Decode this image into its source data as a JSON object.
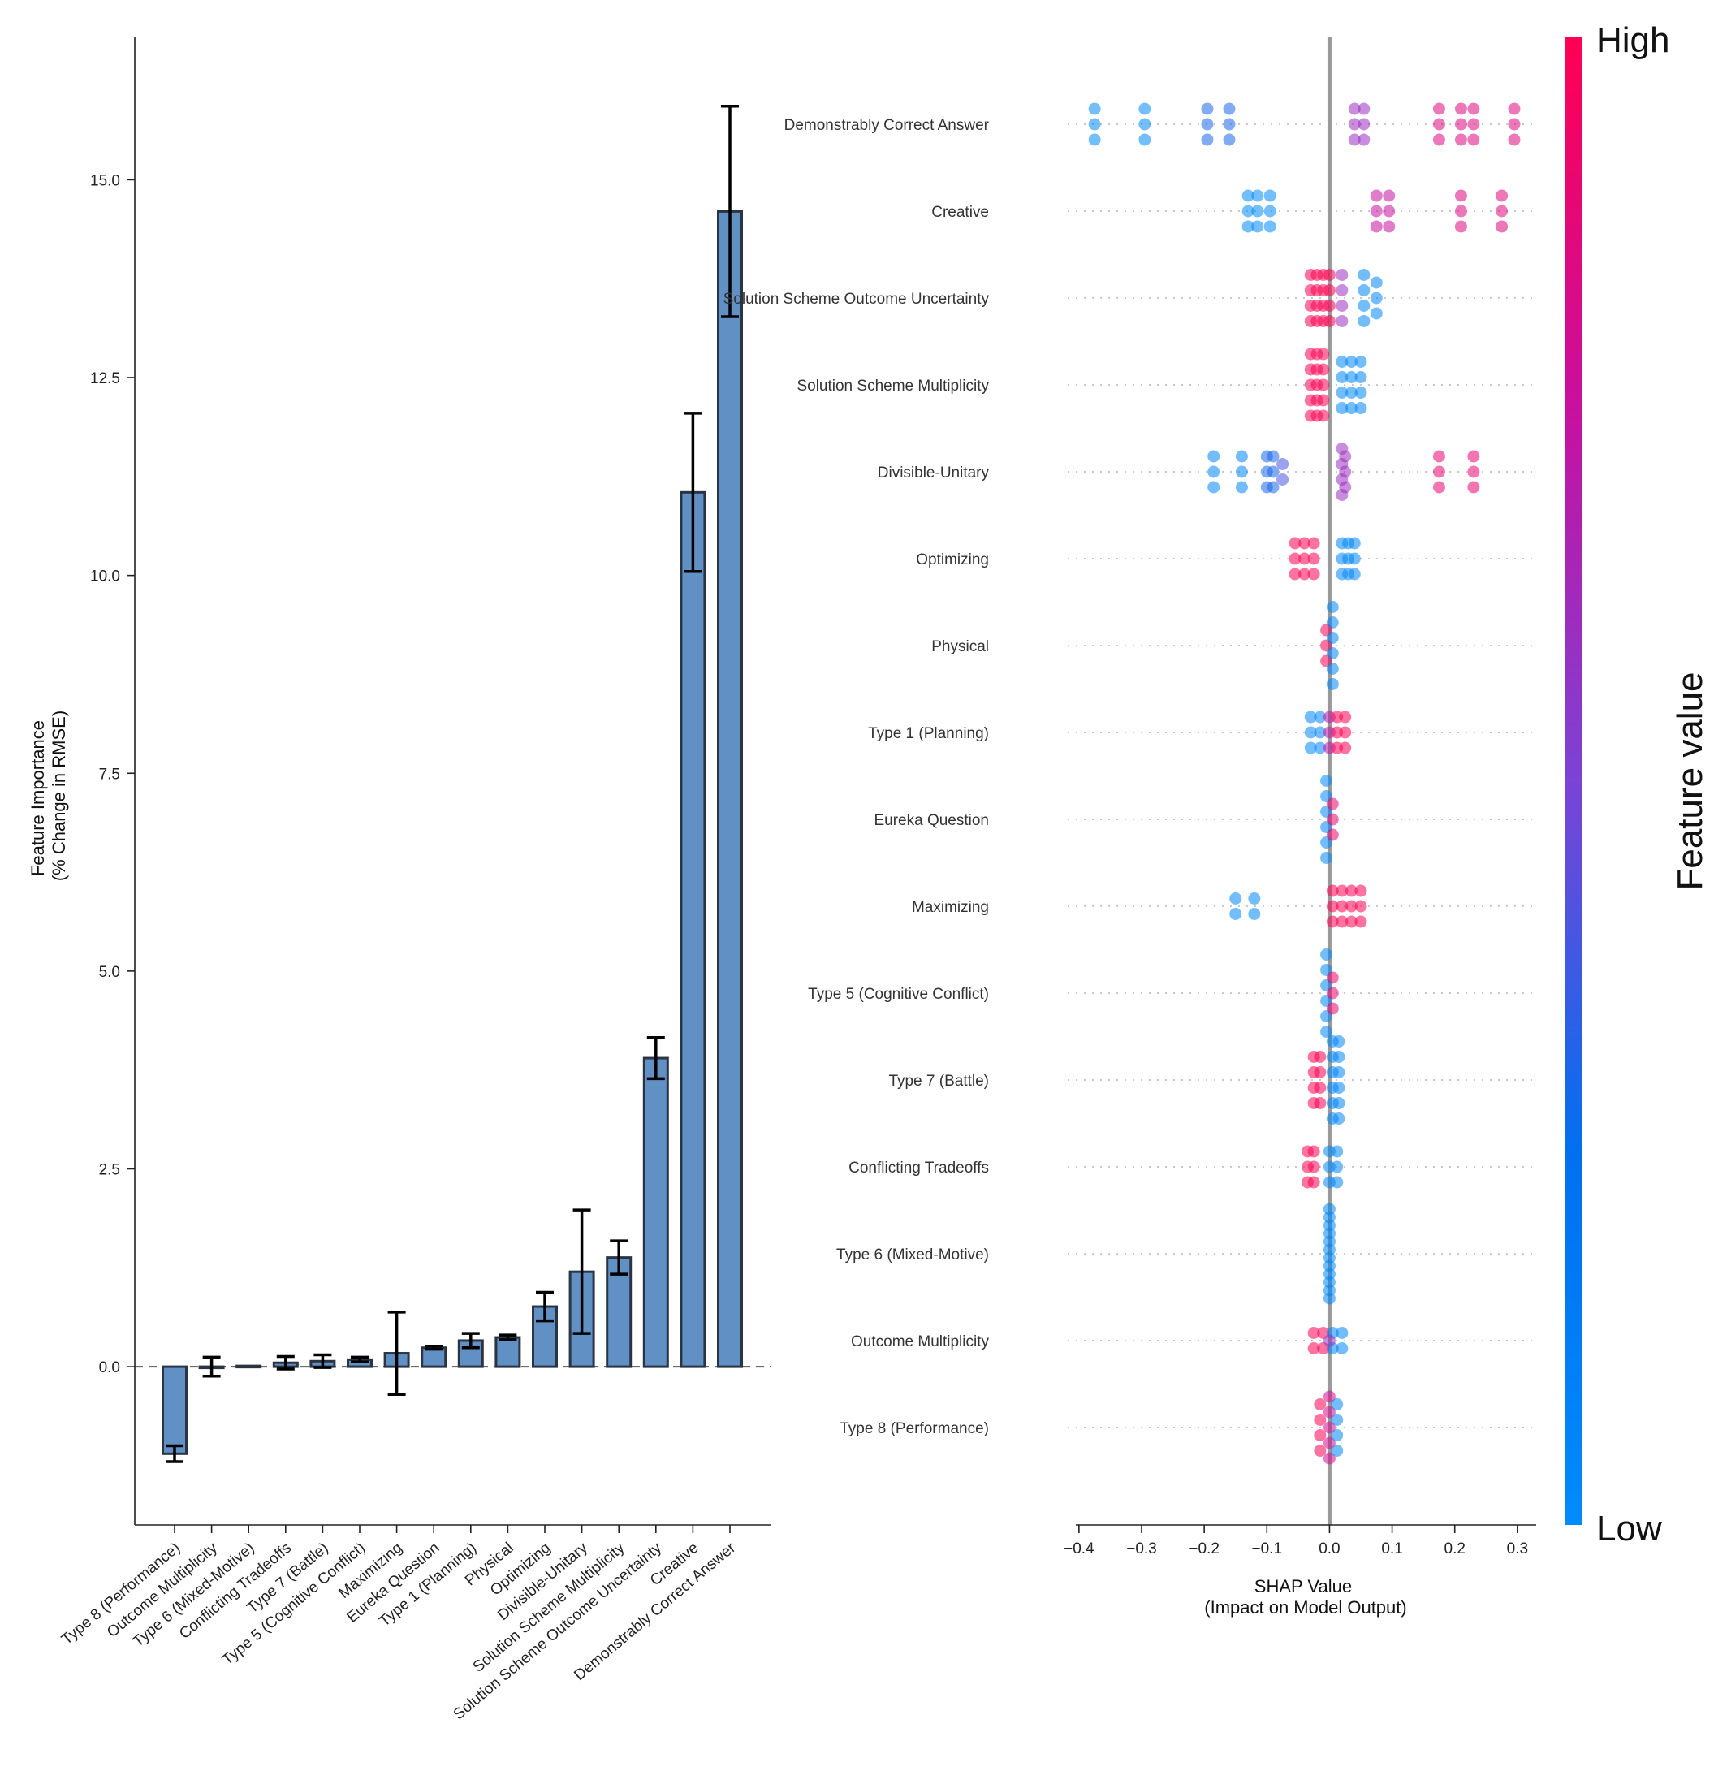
{
  "chart_data": [
    {
      "type": "bar",
      "ylabel": "Feature Importance\n(% Change in RMSE)",
      "ylim": [
        -2,
        16.8
      ],
      "yticks": [
        "0.0",
        "2.5",
        "5.0",
        "7.5",
        "10.0",
        "12.5",
        "15.0"
      ],
      "ytick_values": [
        0,
        2.5,
        5.0,
        7.5,
        10.0,
        12.5,
        15.0
      ],
      "reference_line": 0,
      "bar_color": "#6090c4",
      "categories": [
        "Type 8 (Performance)",
        "Outcome Multiplicity",
        "Type 6 (Mixed-Motive)",
        "Conflicting Tradeoffs",
        "Type 7 (Battle)",
        "Type 5 (Cognitive Conflict)",
        "Maximizing",
        "Eureka Question",
        "Type 1 (Planning)",
        "Physical",
        "Optimizing",
        "Divisible-Unitary",
        "Solution Scheme Multiplicity",
        "Solution Scheme Outcome Uncertainty",
        "Creative",
        "Demonstrably Correct Answer"
      ],
      "values": [
        -1.1,
        0.0,
        0.01,
        0.05,
        0.07,
        0.09,
        0.17,
        0.24,
        0.33,
        0.37,
        0.76,
        1.2,
        1.38,
        3.9,
        11.05,
        14.6
      ],
      "error": [
        0.1,
        0.12,
        0.0,
        0.08,
        0.08,
        0.03,
        0.52,
        0.02,
        0.09,
        0.03,
        0.18,
        0.78,
        0.21,
        0.26,
        1.0,
        1.33
      ]
    },
    {
      "type": "scatter",
      "subtype": "shap-beeswarm",
      "xlabel": "SHAP Value\n(Impact on Model Output)",
      "xlim": [
        -0.405,
        0.33
      ],
      "xticks": [
        "−0.4",
        "−0.3",
        "−0.2",
        "−0.1",
        "0.0",
        "0.1",
        "0.2",
        "0.3"
      ],
      "xtick_values": [
        -0.4,
        -0.3,
        -0.2,
        -0.1,
        0.0,
        0.1,
        0.2,
        0.3
      ],
      "reference_line": 0,
      "colorbar": {
        "label": "Feature value",
        "high": "High",
        "low": "Low",
        "low_color": "#008bfb",
        "high_color": "#ff0052"
      },
      "features": [
        {
          "name": "Demonstrably Correct Answer",
          "groups": [
            [
              -0.375,
              0,
              3
            ],
            [
              -0.295,
              0,
              3
            ],
            [
              -0.195,
              0.3,
              3
            ],
            [
              -0.16,
              0.3,
              3
            ],
            [
              0.04,
              0.6,
              3
            ],
            [
              0.055,
              0.6,
              3
            ],
            [
              0.175,
              0.85,
              3
            ],
            [
              0.21,
              0.85,
              3
            ],
            [
              0.23,
              0.85,
              3
            ],
            [
              0.295,
              0.85,
              3
            ]
          ]
        },
        {
          "name": "Creative",
          "groups": [
            [
              -0.13,
              0,
              3
            ],
            [
              -0.115,
              0,
              3
            ],
            [
              -0.095,
              0,
              3
            ],
            [
              0.075,
              0.75,
              3
            ],
            [
              0.095,
              0.75,
              3
            ],
            [
              0.21,
              0.85,
              3
            ],
            [
              0.275,
              0.85,
              3
            ]
          ]
        },
        {
          "name": "Solution Scheme Outcome Uncertainty",
          "groups": [
            [
              -0.03,
              1,
              4
            ],
            [
              -0.02,
              1,
              4
            ],
            [
              -0.01,
              1,
              4
            ],
            [
              0.0,
              1,
              4
            ],
            [
              0.02,
              0.6,
              4
            ],
            [
              0.055,
              0.05,
              4
            ],
            [
              0.075,
              0.05,
              3
            ]
          ]
        },
        {
          "name": "Solution Scheme Multiplicity",
          "groups": [
            [
              -0.03,
              1,
              5
            ],
            [
              -0.02,
              1,
              5
            ],
            [
              -0.01,
              1,
              5
            ],
            [
              0.02,
              0.05,
              4
            ],
            [
              0.035,
              0.05,
              4
            ],
            [
              0.05,
              0.05,
              4
            ]
          ]
        },
        {
          "name": "Divisible-Unitary",
          "groups": [
            [
              -0.185,
              0.05,
              3
            ],
            [
              -0.14,
              0.05,
              3
            ],
            [
              -0.1,
              0.3,
              3
            ],
            [
              -0.09,
              0.3,
              3
            ],
            [
              -0.075,
              0.4,
              2
            ],
            [
              0.02,
              0.6,
              4
            ],
            [
              0.025,
              0.6,
              3
            ],
            [
              0.175,
              0.9,
              3
            ],
            [
              0.23,
              0.9,
              3
            ]
          ]
        },
        {
          "name": "Optimizing",
          "groups": [
            [
              -0.055,
              1,
              3
            ],
            [
              -0.04,
              1,
              3
            ],
            [
              -0.025,
              1,
              3
            ],
            [
              0.02,
              0.05,
              3
            ],
            [
              0.03,
              0.05,
              3
            ],
            [
              0.04,
              0.05,
              3
            ]
          ]
        },
        {
          "name": "Physical",
          "groups": [
            [
              -0.005,
              1,
              3
            ],
            [
              0.005,
              0.05,
              6
            ]
          ]
        },
        {
          "name": "Type 1 (Planning)",
          "groups": [
            [
              -0.03,
              0.05,
              3
            ],
            [
              -0.015,
              0.05,
              3
            ],
            [
              0.0,
              0.7,
              3
            ],
            [
              0.012,
              1,
              3
            ],
            [
              0.025,
              1,
              3
            ]
          ]
        },
        {
          "name": "Eureka Question",
          "groups": [
            [
              -0.005,
              0.05,
              6
            ],
            [
              0.005,
              0.9,
              3
            ]
          ]
        },
        {
          "name": "Maximizing",
          "groups": [
            [
              -0.15,
              0.05,
              2
            ],
            [
              -0.12,
              0.05,
              2
            ],
            [
              0.005,
              1,
              3
            ],
            [
              0.02,
              1,
              3
            ],
            [
              0.035,
              1,
              3
            ],
            [
              0.05,
              1,
              3
            ]
          ]
        },
        {
          "name": "Type 5 (Cognitive Conflict)",
          "groups": [
            [
              -0.005,
              0.05,
              6
            ],
            [
              0.005,
              0.9,
              3
            ]
          ]
        },
        {
          "name": "Type 7 (Battle)",
          "groups": [
            [
              -0.025,
              1,
              4
            ],
            [
              -0.015,
              1,
              4
            ],
            [
              0.005,
              0.05,
              6
            ],
            [
              0.015,
              0.05,
              6
            ]
          ]
        },
        {
          "name": "Conflicting Tradeoffs",
          "groups": [
            [
              -0.035,
              1,
              3
            ],
            [
              -0.025,
              1,
              3
            ],
            [
              0.0,
              0.05,
              3
            ],
            [
              0.012,
              0.05,
              3
            ]
          ]
        },
        {
          "name": "Type 6 (Mixed-Motive)",
          "groups": [
            [
              0.0,
              0.05,
              12
            ]
          ]
        },
        {
          "name": "Outcome Multiplicity",
          "groups": [
            [
              -0.025,
              1,
              2
            ],
            [
              -0.01,
              1,
              2
            ],
            [
              0.005,
              0.05,
              2
            ],
            [
              0.02,
              0.05,
              2
            ],
            [
              0.0,
              0.6,
              1
            ]
          ]
        },
        {
          "name": "Type 8 (Performance)",
          "groups": [
            [
              -0.015,
              1,
              4
            ],
            [
              0.0,
              0.8,
              5
            ],
            [
              0.012,
              0.05,
              4
            ]
          ]
        }
      ]
    }
  ]
}
